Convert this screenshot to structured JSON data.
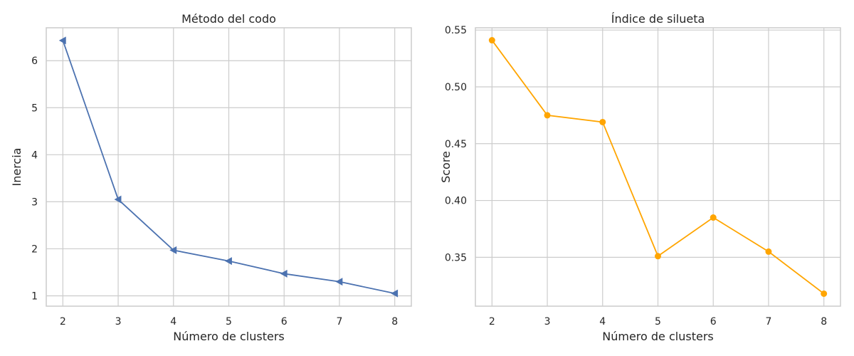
{
  "chart_data": [
    {
      "type": "line",
      "title": "Método del codo",
      "xlabel": "Número de clusters",
      "ylabel": "Inercia",
      "x": [
        2,
        3,
        4,
        5,
        6,
        7,
        8
      ],
      "series": [
        {
          "values": [
            6.43,
            3.05,
            1.97,
            1.74,
            1.47,
            1.3,
            1.05
          ],
          "color": "#4c72b0",
          "marker": "triangle-left"
        }
      ],
      "xticks": [
        "2",
        "3",
        "4",
        "5",
        "6",
        "7",
        "8"
      ],
      "yticks": [
        "1",
        "2",
        "3",
        "4",
        "5",
        "6"
      ],
      "xlim": [
        1.7,
        8.3
      ],
      "ylim": [
        0.78,
        6.7
      ],
      "grid": true
    },
    {
      "type": "line",
      "title": "Índice de silueta",
      "xlabel": "Número de clusters",
      "ylabel": "Score",
      "x": [
        2,
        3,
        4,
        5,
        6,
        7,
        8
      ],
      "series": [
        {
          "values": [
            0.541,
            0.475,
            0.469,
            0.351,
            0.385,
            0.355,
            0.318
          ],
          "color": "#ffa500",
          "marker": "circle"
        }
      ],
      "xticks": [
        "2",
        "3",
        "4",
        "5",
        "6",
        "7",
        "8"
      ],
      "yticks": [
        "0.35",
        "0.40",
        "0.45",
        "0.50",
        "0.55"
      ],
      "xlim": [
        1.7,
        8.3
      ],
      "ylim": [
        0.307,
        0.552
      ],
      "grid": true
    }
  ]
}
